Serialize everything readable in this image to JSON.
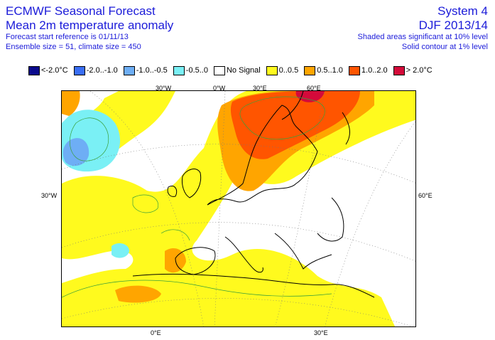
{
  "header": {
    "title_line1": "ECMWF Seasonal Forecast",
    "title_line2": "Mean 2m temperature anomaly",
    "info_line1": "Forecast start reference is 01/11/13",
    "info_line2": "Ensemble size = 51, climate size = 450",
    "system": "System 4",
    "season": "DJF 2013/14",
    "note1": "Shaded areas significant at 10% level",
    "note2": "Solid contour at 1% level"
  },
  "legend": [
    {
      "label": "<-2.0°C",
      "color": "#0a0a8c"
    },
    {
      "label": "-2.0..-1.0",
      "color": "#3a6ef5"
    },
    {
      "label": "-1.0..-0.5",
      "color": "#6eaef5"
    },
    {
      "label": "-0.5..0",
      "color": "#7af0f5"
    },
    {
      "label": "No Signal",
      "color": "#ffffff"
    },
    {
      "label": "0..0.5",
      "color": "#fffa1e"
    },
    {
      "label": "0.5..1.0",
      "color": "#ffa500"
    },
    {
      "label": "1.0..2.0",
      "color": "#ff5500"
    },
    {
      "label": "> 2.0°C",
      "color": "#d40a3a"
    }
  ],
  "map_labels": {
    "top_30w": "30°W",
    "top_0w": "0°W",
    "top_30e": "30°E",
    "top_60e": "60°E",
    "left_30w": "30°W",
    "right_60e": "60°E",
    "bottom_0e": "0°E",
    "bottom_30e": "30°E"
  }
}
